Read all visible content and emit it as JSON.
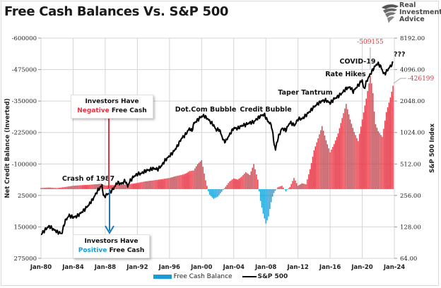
{
  "header": {
    "title": "Free Cash Balances Vs. S&P 500",
    "brand": {
      "line1": "Real",
      "line2": "Investment",
      "line3": "Advice",
      "logo_icon": "eagle-head-icon"
    }
  },
  "colors": {
    "positive_bar": "#e8323f",
    "negative_bar": "#1a9ad6",
    "sp500_line": "#000000",
    "grid": "#d4d4d4",
    "annotation_red": "#e8323f",
    "annotation_blue": "#1a9ad6"
  },
  "chart_data": {
    "type": "bar+line",
    "title": "Free Cash Balances Vs. S&P 500",
    "x_ticks": [
      "Jan-80",
      "Jan-84",
      "Jan-88",
      "Jan-92",
      "Jan-96",
      "Jan-00",
      "Jan-04",
      "Jan-08",
      "Jan-12",
      "Jan-16",
      "Jan-20",
      "Jan-24"
    ],
    "x_range": [
      1980.0,
      2024.0
    ],
    "left_axis": {
      "label": "Net Credit Balance (Inverted)",
      "inverted": true,
      "range": [
        -600000,
        275000
      ],
      "ticks": [
        "-600000",
        "-475000",
        "-350000",
        "-225000",
        "-100000",
        "25000",
        "150000",
        "275000"
      ],
      "tick_values": [
        -600000,
        -475000,
        -350000,
        -225000,
        -100000,
        25000,
        150000,
        275000
      ]
    },
    "right_axis": {
      "label": "S&P 500 Index",
      "scale": "log2",
      "range": [
        64,
        8192
      ],
      "ticks": [
        "8192.00",
        "4096.00",
        "2048.00",
        "1024.00",
        "512.00",
        "256.00",
        "128.00",
        "64.00"
      ],
      "tick_values": [
        8192,
        4096,
        2048,
        1024,
        512,
        256,
        128,
        64
      ]
    },
    "grid": true,
    "legend_position": "bottom",
    "legend": [
      {
        "name": "Free Cash Balance",
        "type": "bar"
      },
      {
        "name": "S&P 500",
        "type": "line"
      }
    ],
    "series": [
      {
        "name": "Free Cash Balance",
        "axis": "left",
        "x": [
          1980.0,
          1981.0,
          1982.0,
          1983.0,
          1984.0,
          1985.0,
          1986.0,
          1987.0,
          1987.5,
          1988.0,
          1989.0,
          1990.0,
          1991.0,
          1992.0,
          1993.0,
          1994.0,
          1995.0,
          1996.0,
          1997.0,
          1997.5,
          1998.0,
          1998.5,
          1999.0,
          1999.5,
          2000.0,
          2000.2,
          2000.5,
          2000.8,
          2001.0,
          2001.5,
          2002.0,
          2002.5,
          2003.0,
          2003.5,
          2004.0,
          2004.5,
          2005.0,
          2005.5,
          2006.0,
          2006.5,
          2007.0,
          2007.3,
          2007.6,
          2008.0,
          2008.3,
          2008.6,
          2008.9,
          2009.2,
          2009.5,
          2010.0,
          2010.5,
          2011.0,
          2011.5,
          2012.0,
          2012.5,
          2013.0,
          2013.5,
          2014.0,
          2014.5,
          2015.0,
          2015.5,
          2016.0,
          2016.5,
          2017.0,
          2017.5,
          2018.0,
          2018.5,
          2019.0,
          2019.5,
          2020.0,
          2020.5,
          2021.0,
          2021.3,
          2021.6,
          2022.0,
          2022.5,
          2023.0,
          2023.5,
          2023.9
        ],
        "values": [
          -5000,
          -7000,
          -4000,
          -8000,
          -12000,
          -14000,
          -16000,
          -19000,
          -22000,
          -15000,
          -18000,
          -20000,
          -22000,
          -26000,
          -30000,
          -32000,
          -35000,
          -40000,
          -50000,
          -55000,
          -62000,
          -75000,
          -80000,
          -110000,
          -130000,
          -95000,
          -40000,
          5000,
          20000,
          35000,
          28000,
          10000,
          -10000,
          -30000,
          -40000,
          -35000,
          -45000,
          -60000,
          -50000,
          -90000,
          -35000,
          45000,
          95000,
          140000,
          115000,
          60000,
          20000,
          5000,
          -8000,
          -15000,
          8000,
          -10000,
          -50000,
          -15000,
          -25000,
          -20000,
          -80000,
          -150000,
          -190000,
          -230000,
          -175000,
          -130000,
          -160000,
          -200000,
          -260000,
          -320000,
          -270000,
          -230000,
          -200000,
          -300000,
          -400000,
          -509155,
          -450000,
          -300000,
          -260000,
          -230000,
          -330000,
          -380000,
          -426199
        ]
      },
      {
        "name": "S&P 500",
        "axis": "right",
        "x": [
          1980.0,
          1980.5,
          1981.0,
          1981.5,
          1982.0,
          1982.6,
          1983.0,
          1983.5,
          1984.0,
          1984.5,
          1985.0,
          1985.5,
          1986.0,
          1986.5,
          1987.0,
          1987.6,
          1987.8,
          1988.0,
          1988.5,
          1989.0,
          1989.5,
          1990.0,
          1990.5,
          1990.8,
          1991.0,
          1991.5,
          1992.0,
          1992.5,
          1993.0,
          1993.5,
          1994.0,
          1994.5,
          1995.0,
          1995.5,
          1996.0,
          1996.5,
          1997.0,
          1997.5,
          1998.0,
          1998.5,
          1998.8,
          1999.0,
          1999.5,
          2000.0,
          2000.3,
          2000.7,
          2001.0,
          2001.5,
          2001.8,
          2002.2,
          2002.7,
          2003.0,
          2003.5,
          2004.0,
          2004.5,
          2005.0,
          2005.5,
          2006.0,
          2006.5,
          2007.0,
          2007.5,
          2007.8,
          2008.2,
          2008.7,
          2009.0,
          2009.2,
          2009.5,
          2010.0,
          2010.5,
          2011.0,
          2011.6,
          2012.0,
          2012.5,
          2013.0,
          2013.5,
          2014.0,
          2014.5,
          2015.0,
          2015.5,
          2016.0,
          2016.5,
          2017.0,
          2017.5,
          2018.0,
          2018.5,
          2018.9,
          2019.0,
          2019.5,
          2020.0,
          2020.2,
          2020.5,
          2021.0,
          2021.5,
          2021.9,
          2022.3,
          2022.7,
          2023.0,
          2023.5,
          2023.9
        ],
        "values": [
          108,
          120,
          130,
          122,
          115,
          110,
          145,
          165,
          158,
          162,
          175,
          190,
          210,
          238,
          280,
          320,
          245,
          255,
          270,
          295,
          340,
          330,
          355,
          310,
          345,
          385,
          410,
          415,
          440,
          450,
          465,
          455,
          490,
          560,
          610,
          670,
          760,
          900,
          980,
          1120,
          1050,
          1240,
          1350,
          1460,
          1480,
          1400,
          1320,
          1200,
          1080,
          1100,
          860,
          840,
          980,
          1130,
          1120,
          1190,
          1220,
          1270,
          1290,
          1410,
          1500,
          1520,
          1330,
          1200,
          820,
          700,
          900,
          1120,
          1080,
          1280,
          1200,
          1380,
          1380,
          1500,
          1640,
          1800,
          1940,
          2060,
          2080,
          1950,
          2150,
          2270,
          2450,
          2700,
          2780,
          2500,
          2600,
          2900,
          3250,
          2600,
          3100,
          3700,
          4300,
          4700,
          4400,
          3700,
          3900,
          4400,
          4780
        ]
      }
    ],
    "annotations": [
      {
        "text": "Crash of 1987",
        "x": 1987.0
      },
      {
        "text": "Dot.Com Bubble",
        "x": 2000.0
      },
      {
        "text": "Credit Bubble",
        "x": 2007.5
      },
      {
        "text": "Taper Tantrum",
        "x": 2013.5
      },
      {
        "text": "Rate Hikes",
        "x": 2018.0
      },
      {
        "text": "COVID-19",
        "x": 2020.0
      },
      {
        "text": "???",
        "x": 2024.0
      },
      {
        "text": "-509155",
        "x": 2021.0
      },
      {
        "text": "-426199",
        "x": 2023.9
      }
    ],
    "callouts": {
      "negative": {
        "line1": "Investors Have",
        "highlight": "Negative",
        "rest": " Free Cash"
      },
      "positive": {
        "line1": "Investors Have",
        "highlight": "Positive",
        "rest": " Free Cash"
      }
    }
  }
}
